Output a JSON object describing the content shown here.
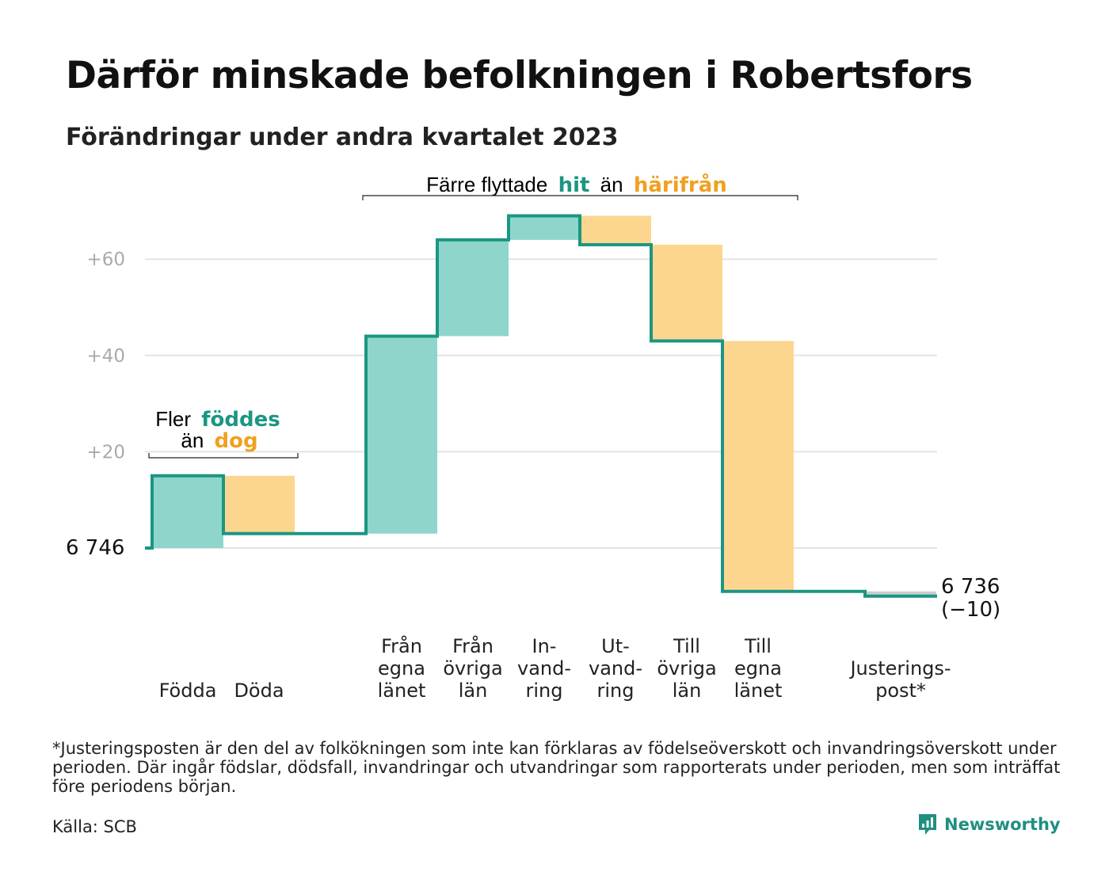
{
  "header": {
    "title": "Därför minskade befolkningen i Robertsfors",
    "subtitle": "Förändringar under andra kvartalet 2023"
  },
  "colors": {
    "inflow_fill": "#8ed6cb",
    "outflow_fill": "#fcd68f",
    "line": "#1b9683",
    "inflow_text": "#1b9683",
    "outflow_text": "#f0a020",
    "grid": "#e3e3e3",
    "adjustment_fill": "#cccccc"
  },
  "annotations": {
    "births": {
      "line1_prefix": "Fler",
      "line1_strong": "föddes",
      "line2_prefix": "än",
      "line2_strong": "dog"
    },
    "migration": {
      "prefix": "Färre flyttade",
      "strong1": "hit",
      "middle": "än",
      "strong2": "härifrån"
    }
  },
  "chart_data": {
    "type": "waterfall",
    "start": {
      "label": "6  746",
      "value": 6746
    },
    "end": {
      "label": "6 736",
      "change_label": "(−10)",
      "value": 6736
    },
    "y_axis": {
      "ticks": [
        "+20",
        "+40",
        "+60"
      ],
      "tick_values": [
        20,
        40,
        60
      ]
    },
    "ylim": [
      -12,
      70
    ],
    "grid": true,
    "steps": [
      {
        "label": [
          "Födda"
        ],
        "value": 15,
        "kind": "in"
      },
      {
        "label": [
          "Döda"
        ],
        "value": -12,
        "kind": "out"
      },
      {
        "label": [],
        "value": 0,
        "kind": "gap"
      },
      {
        "label": [
          "Från",
          "egna",
          "länet"
        ],
        "value": 41,
        "kind": "in"
      },
      {
        "label": [
          "Från",
          "övriga",
          "län"
        ],
        "value": 20,
        "kind": "in"
      },
      {
        "label": [
          "In-",
          "vand-",
          "ring"
        ],
        "value": 5,
        "kind": "in"
      },
      {
        "label": [
          "Ut-",
          "vand-",
          "ring"
        ],
        "value": -6,
        "kind": "out"
      },
      {
        "label": [
          "Till",
          "övriga",
          "län"
        ],
        "value": -20,
        "kind": "out"
      },
      {
        "label": [
          "Till",
          "egna",
          "länet"
        ],
        "value": -52,
        "kind": "out"
      },
      {
        "label": [],
        "value": 0,
        "kind": "gap"
      },
      {
        "label": [
          "Justerings-",
          "post*"
        ],
        "value": -1,
        "kind": "adjust"
      }
    ]
  },
  "footnote": "*Justeringsposten är den del av folkökningen som inte kan förklaras av födelseöverskott och invandringsöverskott under perioden. Där ingår födslar, dödsfall, invandringar och utvandringar som rapporterats under perioden, men som inträffat före periodens början.",
  "source": "Källa: SCB",
  "brand": {
    "name": "Newsworthy",
    "logo_icon": "bar-chart-speech-bubble-icon"
  }
}
